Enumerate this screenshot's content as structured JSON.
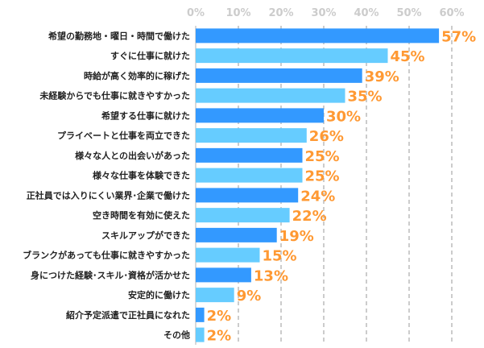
{
  "chart_data": {
    "type": "bar",
    "orientation": "horizontal",
    "categories": [
      "希望の勤務地・曜日・時間で働けた",
      "すぐに仕事に就けた",
      "時給が高く効率的に稼げた",
      "未経験からでも仕事に就きやすかった",
      "希望する仕事に就けた",
      "プライベートと仕事を両立できた",
      "様々な人との出会いがあった",
      "様々な仕事を体験できた",
      "正社員では入りにくい業界･企業で働けた",
      "空き時間を有効に使えた",
      "スキルアップができた",
      "ブランクがあっても仕事に就きやすかった",
      "身につけた経験･スキル･資格が活かせた",
      "安定的に働けた",
      "紹介予定派遣で正社員になれた",
      "その他"
    ],
    "values": [
      57,
      45,
      39,
      35,
      30,
      26,
      25,
      25,
      24,
      22,
      19,
      15,
      13,
      9,
      2,
      2
    ],
    "value_labels": [
      "57%",
      "45%",
      "39%",
      "35%",
      "30%",
      "26%",
      "25%",
      "25%",
      "24%",
      "22%",
      "19%",
      "15%",
      "13%",
      "9%",
      "2%",
      "2%"
    ],
    "xlim": [
      0,
      60
    ],
    "x_ticks": [
      "0%",
      "10%",
      "20%",
      "30%",
      "40%",
      "50%",
      "60%"
    ],
    "axis_position": "top",
    "grid": true,
    "colors": {
      "bar_dark": "#3399ff",
      "bar_light": "#66ccff",
      "value_label": "#ff9933",
      "tick": "#cccccc",
      "grid": "#bbbbbb"
    }
  }
}
